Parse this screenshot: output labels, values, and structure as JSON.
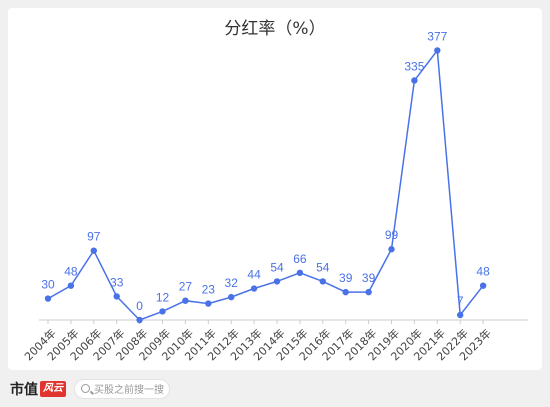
{
  "chart_data": {
    "type": "line",
    "title": "分红率（%）",
    "categories": [
      "2004年",
      "2005年",
      "2006年",
      "2007年",
      "2008年",
      "2009年",
      "2010年",
      "2011年",
      "2012年",
      "2013年",
      "2014年",
      "2015年",
      "2016年",
      "2017年",
      "2018年",
      "2019年",
      "2020年",
      "2021年",
      "2022年",
      "2023年"
    ],
    "series": [
      {
        "values": [
          30,
          48,
          97,
          33,
          0,
          12,
          27,
          23,
          32,
          44,
          54,
          66,
          54,
          39,
          39,
          99,
          335,
          377,
          7,
          48
        ]
      }
    ],
    "ylim": [
      0,
      400
    ],
    "grid": false,
    "line_color": "#4a72e8",
    "label_color": "#4a72e8"
  },
  "footer": {
    "brand_name": "市值",
    "brand_tag": "风云",
    "search_placeholder": "买股之前搜一搜"
  }
}
